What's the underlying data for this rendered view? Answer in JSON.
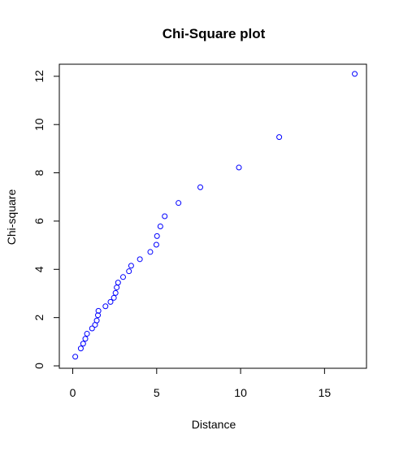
{
  "chart_data": {
    "type": "scatter",
    "title": "Chi-Square plot",
    "xlabel": "Distance",
    "ylabel": "Chi-square",
    "xlim": [
      -0.8,
      17.5
    ],
    "ylim": [
      -0.1,
      12.5
    ],
    "x_ticks": [
      0,
      5,
      10,
      15
    ],
    "y_ticks": [
      0,
      2,
      4,
      6,
      8,
      10,
      12
    ],
    "x_tick_labels": [
      "0",
      "5",
      "10",
      "15"
    ],
    "y_tick_labels": [
      "0",
      "2",
      "4",
      "6",
      "8",
      "10",
      "12"
    ],
    "grid": false,
    "legend": "none",
    "marker": "open-circle",
    "point_color": "#0000ff",
    "series": [
      {
        "x": [
          0.15,
          0.48,
          0.62,
          0.75,
          0.85,
          1.15,
          1.33,
          1.43,
          1.5,
          1.53,
          1.95,
          2.25,
          2.45,
          2.55,
          2.62,
          2.7,
          3.0,
          3.35,
          3.48,
          4.0,
          4.62,
          4.98,
          5.02,
          5.22,
          5.48,
          6.3,
          7.6,
          9.9,
          12.3,
          16.8
        ],
        "y": [
          0.38,
          0.72,
          0.92,
          1.12,
          1.33,
          1.55,
          1.7,
          1.88,
          2.1,
          2.28,
          2.47,
          2.65,
          2.82,
          3.02,
          3.25,
          3.45,
          3.68,
          3.92,
          4.15,
          4.42,
          4.72,
          5.02,
          5.38,
          5.78,
          6.2,
          6.75,
          7.4,
          8.22,
          9.48,
          12.1
        ]
      }
    ]
  }
}
